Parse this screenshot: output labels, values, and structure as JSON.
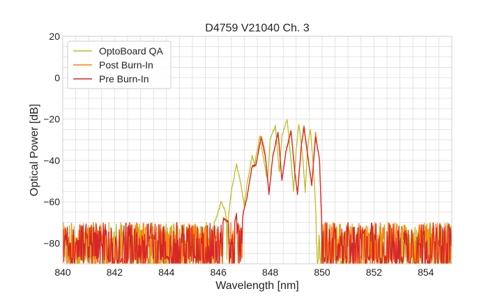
{
  "chart_data": {
    "type": "line",
    "title": "D4759 V21040 Ch. 3",
    "xlabel": "Wavelength [nm]",
    "ylabel": "Optical Power [dB]",
    "xlim": [
      840,
      855
    ],
    "ylim": [
      -90,
      20
    ],
    "xticks": [
      840,
      842,
      844,
      846,
      848,
      850,
      852,
      854
    ],
    "yticks": [
      -80,
      -60,
      -40,
      -20,
      0,
      20
    ],
    "x_minor_step": 0.5,
    "y_minor_step": 5,
    "grid": true,
    "legend_position": "top-left",
    "noise_floor_db": [
      -90,
      -72
    ],
    "series": [
      {
        "name": "OptoBoard QA",
        "color": "#bcbd22",
        "points": [
          [
            840.0,
            -79
          ],
          [
            845.3,
            -76
          ],
          [
            845.6,
            -70
          ],
          [
            845.8,
            -72
          ],
          [
            846.0,
            -65
          ],
          [
            846.1,
            -60
          ],
          [
            846.25,
            -64
          ],
          [
            846.35,
            -72
          ],
          [
            846.5,
            -55
          ],
          [
            846.7,
            -42
          ],
          [
            846.85,
            -50
          ],
          [
            847.0,
            -62
          ],
          [
            847.1,
            -52
          ],
          [
            847.3,
            -38
          ],
          [
            847.4,
            -42
          ],
          [
            847.6,
            -28
          ],
          [
            847.75,
            -40
          ],
          [
            847.9,
            -50
          ],
          [
            848.0,
            -30
          ],
          [
            848.2,
            -23
          ],
          [
            848.35,
            -46
          ],
          [
            848.45,
            -28
          ],
          [
            848.65,
            -20
          ],
          [
            848.8,
            -40
          ],
          [
            848.9,
            -55
          ],
          [
            849.0,
            -35
          ],
          [
            849.1,
            -22
          ],
          [
            849.25,
            -38
          ],
          [
            849.35,
            -55
          ],
          [
            849.45,
            -32
          ],
          [
            849.55,
            -25
          ],
          [
            849.7,
            -50
          ],
          [
            849.8,
            -75
          ],
          [
            850.0,
            -85
          ],
          [
            855.0,
            -78
          ]
        ]
      },
      {
        "name": "Post Burn-In",
        "color": "#ff7f0e",
        "points": [
          [
            840.0,
            -80
          ],
          [
            845.4,
            -74
          ],
          [
            845.9,
            -70
          ],
          [
            846.05,
            -82
          ],
          [
            846.2,
            -68
          ],
          [
            846.4,
            -70
          ],
          [
            846.5,
            -76
          ],
          [
            846.7,
            -66
          ],
          [
            846.8,
            -86
          ],
          [
            846.95,
            -66
          ],
          [
            847.1,
            -58
          ],
          [
            847.3,
            -43
          ],
          [
            847.45,
            -42
          ],
          [
            847.65,
            -28
          ],
          [
            847.8,
            -36
          ],
          [
            847.95,
            -56
          ],
          [
            848.1,
            -38
          ],
          [
            848.3,
            -27
          ],
          [
            848.45,
            -50
          ],
          [
            848.6,
            -36
          ],
          [
            848.8,
            -25
          ],
          [
            848.95,
            -46
          ],
          [
            849.05,
            -56
          ],
          [
            849.2,
            -33
          ],
          [
            849.3,
            -23
          ],
          [
            849.45,
            -38
          ],
          [
            849.6,
            -52
          ],
          [
            849.75,
            -27
          ],
          [
            849.9,
            -40
          ],
          [
            850.0,
            -76
          ],
          [
            850.2,
            -80
          ],
          [
            855.0,
            -80
          ]
        ]
      },
      {
        "name": "Pre Burn-In",
        "color": "#d62728",
        "points": [
          [
            840.0,
            -80
          ],
          [
            845.4,
            -74
          ],
          [
            845.9,
            -70
          ],
          [
            846.05,
            -82
          ],
          [
            846.2,
            -68
          ],
          [
            846.4,
            -70
          ],
          [
            846.5,
            -76
          ],
          [
            846.7,
            -66
          ],
          [
            846.8,
            -86
          ],
          [
            846.95,
            -66
          ],
          [
            847.1,
            -58
          ],
          [
            847.3,
            -43
          ],
          [
            847.45,
            -42
          ],
          [
            847.65,
            -29
          ],
          [
            847.8,
            -37
          ],
          [
            847.95,
            -56
          ],
          [
            848.1,
            -38
          ],
          [
            848.3,
            -26
          ],
          [
            848.45,
            -50
          ],
          [
            848.6,
            -36
          ],
          [
            848.8,
            -26
          ],
          [
            848.95,
            -46
          ],
          [
            849.05,
            -56
          ],
          [
            849.2,
            -33
          ],
          [
            849.3,
            -24
          ],
          [
            849.45,
            -38
          ],
          [
            849.6,
            -52
          ],
          [
            849.75,
            -29
          ],
          [
            849.9,
            -40
          ],
          [
            850.0,
            -76
          ],
          [
            850.2,
            -80
          ],
          [
            855.0,
            -80
          ]
        ]
      }
    ]
  }
}
